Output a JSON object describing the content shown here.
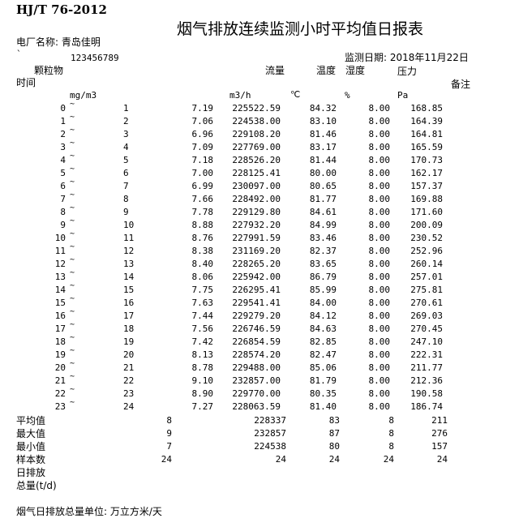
{
  "header": {
    "standard": "HJ/T 76-2012",
    "title": "烟气排放连续监测小时平均值日报表",
    "plant_label": "电厂名称: 青岛佳明",
    "mark": "`",
    "plant_code": "123456789",
    "date_label": "监测日期: 2018年11月22日"
  },
  "columns": {
    "particulate": "颗粒物",
    "flow": "流量",
    "temperature": "温度",
    "humidity": "湿度",
    "pressure": "压力",
    "time": "时间",
    "remarks": "备注",
    "unit_particulate": "mg/m3",
    "unit_flow": "m3/h",
    "unit_temperature": "℃",
    "unit_humidity": "%",
    "unit_pressure": "Pa"
  },
  "rows": [
    {
      "from": "0",
      "to": "1",
      "particulate": "7.19",
      "flow": "225522.59",
      "temp": "84.32",
      "humidity": "8.00",
      "pressure": "168.85"
    },
    {
      "from": "1",
      "to": "2",
      "particulate": "7.06",
      "flow": "224538.00",
      "temp": "83.10",
      "humidity": "8.00",
      "pressure": "164.39"
    },
    {
      "from": "2",
      "to": "3",
      "particulate": "6.96",
      "flow": "229108.20",
      "temp": "81.46",
      "humidity": "8.00",
      "pressure": "164.81"
    },
    {
      "from": "3",
      "to": "4",
      "particulate": "7.09",
      "flow": "227769.00",
      "temp": "83.17",
      "humidity": "8.00",
      "pressure": "165.59"
    },
    {
      "from": "4",
      "to": "5",
      "particulate": "7.18",
      "flow": "228526.20",
      "temp": "81.44",
      "humidity": "8.00",
      "pressure": "170.73"
    },
    {
      "from": "5",
      "to": "6",
      "particulate": "7.00",
      "flow": "228125.41",
      "temp": "80.00",
      "humidity": "8.00",
      "pressure": "162.17"
    },
    {
      "from": "6",
      "to": "7",
      "particulate": "6.99",
      "flow": "230097.00",
      "temp": "80.65",
      "humidity": "8.00",
      "pressure": "157.37"
    },
    {
      "from": "7",
      "to": "8",
      "particulate": "7.66",
      "flow": "228492.00",
      "temp": "81.77",
      "humidity": "8.00",
      "pressure": "169.88"
    },
    {
      "from": "8",
      "to": "9",
      "particulate": "7.78",
      "flow": "229129.80",
      "temp": "84.61",
      "humidity": "8.00",
      "pressure": "171.60"
    },
    {
      "from": "9",
      "to": "10",
      "particulate": "8.88",
      "flow": "227932.20",
      "temp": "84.99",
      "humidity": "8.00",
      "pressure": "200.09"
    },
    {
      "from": "10",
      "to": "11",
      "particulate": "8.76",
      "flow": "227991.59",
      "temp": "83.46",
      "humidity": "8.00",
      "pressure": "230.52"
    },
    {
      "from": "11",
      "to": "12",
      "particulate": "8.38",
      "flow": "231169.20",
      "temp": "82.37",
      "humidity": "8.00",
      "pressure": "252.96"
    },
    {
      "from": "12",
      "to": "13",
      "particulate": "8.40",
      "flow": "228265.20",
      "temp": "83.65",
      "humidity": "8.00",
      "pressure": "260.14"
    },
    {
      "from": "13",
      "to": "14",
      "particulate": "8.06",
      "flow": "225942.00",
      "temp": "86.79",
      "humidity": "8.00",
      "pressure": "257.01"
    },
    {
      "from": "14",
      "to": "15",
      "particulate": "7.75",
      "flow": "226295.41",
      "temp": "85.99",
      "humidity": "8.00",
      "pressure": "275.81"
    },
    {
      "from": "15",
      "to": "16",
      "particulate": "7.63",
      "flow": "229541.41",
      "temp": "84.00",
      "humidity": "8.00",
      "pressure": "270.61"
    },
    {
      "from": "16",
      "to": "17",
      "particulate": "7.44",
      "flow": "229279.20",
      "temp": "84.12",
      "humidity": "8.00",
      "pressure": "269.03"
    },
    {
      "from": "17",
      "to": "18",
      "particulate": "7.56",
      "flow": "226746.59",
      "temp": "84.63",
      "humidity": "8.00",
      "pressure": "270.45"
    },
    {
      "from": "18",
      "to": "19",
      "particulate": "7.42",
      "flow": "226854.59",
      "temp": "82.85",
      "humidity": "8.00",
      "pressure": "247.10"
    },
    {
      "from": "19",
      "to": "20",
      "particulate": "8.13",
      "flow": "228574.20",
      "temp": "82.47",
      "humidity": "8.00",
      "pressure": "222.31"
    },
    {
      "from": "20",
      "to": "21",
      "particulate": "8.78",
      "flow": "229488.00",
      "temp": "85.06",
      "humidity": "8.00",
      "pressure": "211.77"
    },
    {
      "from": "21",
      "to": "22",
      "particulate": "9.10",
      "flow": "232857.00",
      "temp": "81.79",
      "humidity": "8.00",
      "pressure": "212.36"
    },
    {
      "from": "22",
      "to": "23",
      "particulate": "8.90",
      "flow": "229770.00",
      "temp": "80.35",
      "humidity": "8.00",
      "pressure": "190.58"
    },
    {
      "from": "23",
      "to": "24",
      "particulate": "7.27",
      "flow": "228063.59",
      "temp": "81.40",
      "humidity": "8.00",
      "pressure": "186.74"
    }
  ],
  "tilde": "~",
  "summary": [
    {
      "label": "平均值",
      "particulate": "8",
      "flow": "228337",
      "temp": "83",
      "humidity": "8",
      "pressure": "211"
    },
    {
      "label": "最大值",
      "particulate": "9",
      "flow": "232857",
      "temp": "87",
      "humidity": "8",
      "pressure": "276"
    },
    {
      "label": "最小值",
      "particulate": "7",
      "flow": "224538",
      "temp": "80",
      "humidity": "8",
      "pressure": "157"
    },
    {
      "label": "样本数",
      "particulate": "24",
      "flow": "24",
      "temp": "24",
      "humidity": "24",
      "pressure": "24"
    },
    {
      "label": "日排放"
    },
    {
      "label": "总量(t/d)"
    }
  ],
  "footer": "烟气日排放总量单位: 万立方米/天"
}
